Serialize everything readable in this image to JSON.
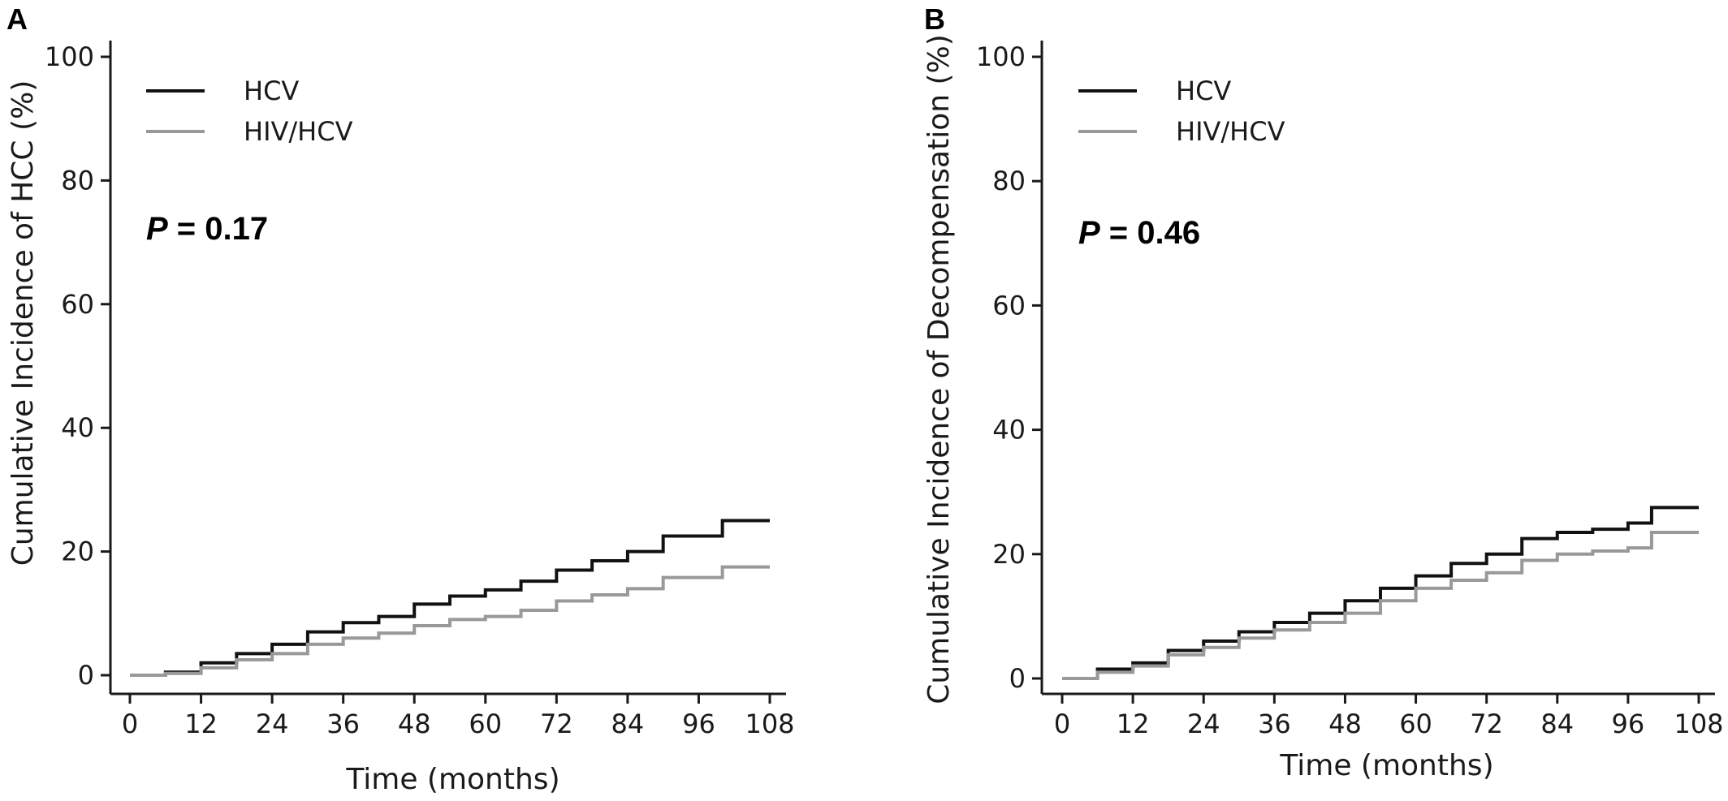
{
  "figure": {
    "colors": {
      "HCV": "#111111",
      "HIV/HCV": "#999999",
      "axis": "#1a1a1a"
    }
  },
  "chart_data": [
    {
      "panel": "A",
      "type": "line",
      "step": true,
      "title": "",
      "xlabel": "Time (months)",
      "ylabel": "Cumulative Incidence of HCC (%)",
      "xlim": [
        0,
        108
      ],
      "ylim": [
        0,
        100
      ],
      "xticks": [
        0,
        12,
        24,
        36,
        48,
        60,
        72,
        84,
        96,
        108
      ],
      "yticks": [
        0,
        20,
        40,
        60,
        80,
        100
      ],
      "xtick_labels": [
        "0",
        "12",
        "24",
        "36",
        "48",
        "60",
        "72",
        "84",
        "96",
        "108"
      ],
      "ytick_labels": [
        "0",
        "20",
        "40",
        "60",
        "80",
        "100"
      ],
      "legend": [
        "HCV",
        "HIV/HCV"
      ],
      "legend_position": "top-left",
      "annotation": {
        "label": "P",
        "text": " = 0.17"
      },
      "grid": false,
      "series": [
        {
          "name": "HCV",
          "color": "#111111",
          "x": [
            0,
            6,
            12,
            18,
            24,
            30,
            36,
            42,
            48,
            54,
            60,
            66,
            72,
            78,
            84,
            90,
            96,
            100,
            108
          ],
          "y": [
            0,
            0.5,
            2,
            3.5,
            5,
            7,
            8.5,
            9.5,
            11.5,
            12.8,
            13.8,
            15.2,
            17,
            18.5,
            20,
            22.5,
            22.5,
            25,
            25
          ]
        },
        {
          "name": "HIV/HCV",
          "color": "#999999",
          "x": [
            0,
            6,
            12,
            18,
            24,
            30,
            36,
            42,
            48,
            54,
            60,
            66,
            72,
            78,
            84,
            90,
            96,
            100,
            108
          ],
          "y": [
            0,
            0.3,
            1.2,
            2.5,
            3.5,
            5,
            6,
            6.8,
            8,
            9,
            9.5,
            10.5,
            12,
            13,
            14,
            15.8,
            15.8,
            17.5,
            17.5
          ]
        }
      ]
    },
    {
      "panel": "B",
      "type": "line",
      "step": true,
      "title": "",
      "xlabel": "Time (months)",
      "ylabel": "Cumulative Incidence of Decompensation (%)",
      "xlim": [
        0,
        108
      ],
      "ylim": [
        0,
        100
      ],
      "xticks": [
        0,
        12,
        24,
        36,
        48,
        60,
        72,
        84,
        96,
        108
      ],
      "yticks": [
        0,
        20,
        40,
        60,
        80,
        100
      ],
      "xtick_labels": [
        "0",
        "12",
        "24",
        "36",
        "48",
        "60",
        "72",
        "84",
        "96",
        "108"
      ],
      "ytick_labels": [
        "0",
        "20",
        "40",
        "60",
        "80",
        "100"
      ],
      "legend": [
        "HCV",
        "HIV/HCV"
      ],
      "legend_position": "top-left",
      "annotation": {
        "label": "P",
        "text": " = 0.46"
      },
      "grid": false,
      "series": [
        {
          "name": "HCV",
          "color": "#111111",
          "x": [
            0,
            6,
            12,
            18,
            24,
            30,
            36,
            42,
            48,
            54,
            60,
            66,
            72,
            78,
            84,
            90,
            96,
            100,
            108
          ],
          "y": [
            0,
            1.5,
            2.5,
            4.5,
            6,
            7.5,
            9,
            10.5,
            12.5,
            14.5,
            16.5,
            18.5,
            20,
            22.5,
            23.5,
            24,
            25,
            27.5,
            27.5
          ]
        },
        {
          "name": "HIV/HCV",
          "color": "#999999",
          "x": [
            0,
            6,
            12,
            18,
            24,
            30,
            36,
            42,
            48,
            54,
            60,
            66,
            72,
            78,
            84,
            90,
            96,
            100,
            108
          ],
          "y": [
            0,
            1,
            2,
            3.8,
            5,
            6.5,
            7.8,
            9,
            10.5,
            12.5,
            14.5,
            15.8,
            17,
            19,
            20,
            20.5,
            21,
            23.5,
            23.5
          ]
        }
      ]
    }
  ]
}
